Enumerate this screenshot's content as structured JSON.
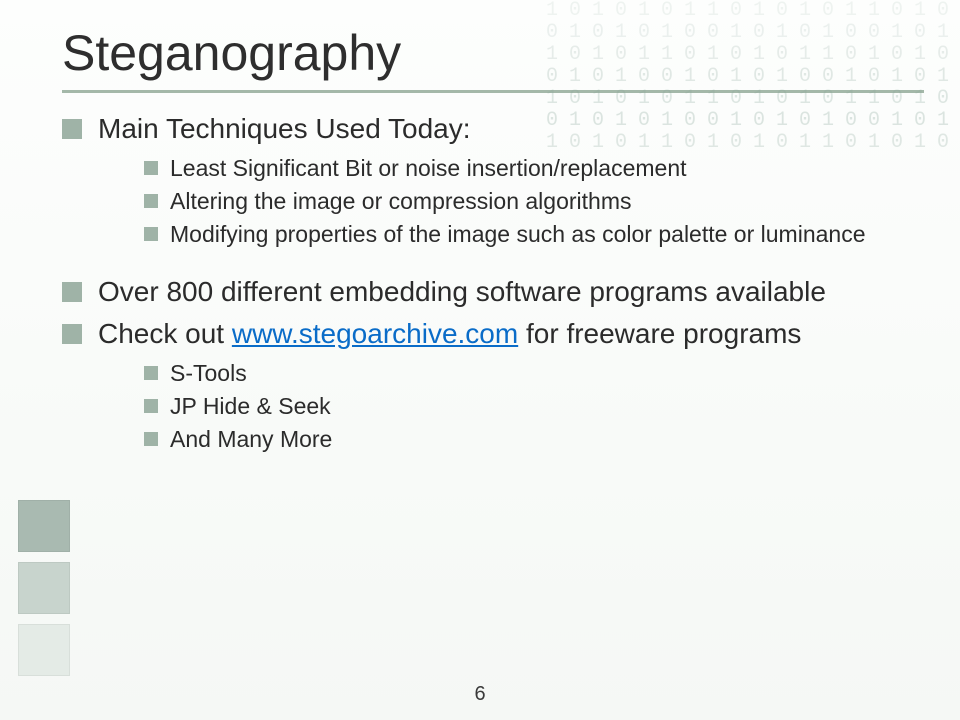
{
  "theme": {
    "background_gradient_top": "#fdfefd",
    "background_gradient_bottom": "#f5f8f5",
    "bullet_color": "#9fb3a7",
    "rule_color": "#a4b8a9",
    "text_color": "#2b2b2b",
    "link_color": "#0a6cc8",
    "deco_square_colors": [
      "#a9bab1",
      "#c8d4cd",
      "#e4ebe6"
    ],
    "binary_pattern_color": "#8aa79a",
    "title_fontsize_pt": 38,
    "body_fontsize_pt": 21,
    "sub_fontsize_pt": 17
  },
  "title": "Steganography",
  "bullets": {
    "item1": "Main Techniques Used Today:",
    "item1_sub1": "Least Significant Bit or noise insertion/replacement",
    "item1_sub2": "Altering the image or compression algorithms",
    "item1_sub3": "Modifying properties of the image such as color palette or luminance",
    "item2": "Over 800 different embedding software programs available",
    "item3_pre": "Check out ",
    "item3_link": "www.stegoarchive.com",
    "item3_post": " for freeware programs",
    "item3_sub1": "S-Tools",
    "item3_sub2": "JP Hide & Seek",
    "item3_sub3": "And Many More"
  },
  "page_number": "6"
}
